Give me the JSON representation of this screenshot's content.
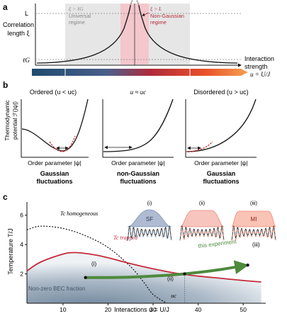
{
  "panel_a": {
    "label": "a",
    "ylabel_1": "Correlation",
    "ylabel_2": "length ξ",
    "tick_L": "L",
    "tick_lG": "ℓG",
    "universal_cond": "ξ > ℓG",
    "universal_1": "Universal",
    "universal_2": "regime",
    "nongauss_cond": "ξ > L",
    "nongauss_1": "Non-Gaussian",
    "nongauss_2": "regime",
    "xlabel_1": "Interaction",
    "xlabel_2": "strength",
    "xlabel_3": "u = U/J"
  },
  "panel_b": {
    "label": "b",
    "ylabel_1": "Thermodynamic",
    "ylabel_2": "potential ℱ(|ψ|)",
    "xlabel": "Order parameter |ψ|",
    "plots": [
      {
        "title": "Ordered (u < uc)",
        "caption_1": "Gaussian",
        "caption_2": "fluctuations"
      },
      {
        "title": "u ≈ uc",
        "caption_1": "non-Gaussian",
        "caption_2": "fluctuations"
      },
      {
        "title": "Disordered (u > uc)",
        "caption_1": "Gaussian",
        "caption_2": "fluctuations"
      }
    ]
  },
  "panel_c": {
    "label": "c",
    "ylabel": "Temperature T/J",
    "xlabel": "Interactions u = U/J",
    "x_ticks": [
      "10",
      "20",
      "30",
      "40",
      "50"
    ],
    "y_ticks": [
      "2",
      "4",
      "6"
    ],
    "uc_label": "uc",
    "tc_homogeneous": "Tc homogeneous",
    "tc_trapped": "Tc trapped",
    "bec_label": "Non-zero BEC fraction",
    "experiment_label": "this experiment",
    "marker_i": "(i)",
    "marker_ii": "(ii)",
    "marker_iii": "(iii)",
    "insets": [
      {
        "num": "(i)",
        "tag": "SF",
        "color": "#7c95b8"
      },
      {
        "num": "(ii)",
        "tag": "",
        "color": "#e8897a"
      },
      {
        "num": "(iii)",
        "tag": "MI",
        "color": "#ef8870"
      }
    ],
    "colors": {
      "tc_trapped": "#c42a3a",
      "arrow": "#4e8a3c",
      "bec": "#8a9db2"
    }
  },
  "chart_data": [
    {
      "type": "line",
      "x": [
        10,
        20,
        30,
        40,
        50
      ],
      "series": [
        {
          "name": "Tc homogeneous",
          "x": [
            2,
            5,
            10,
            15,
            20,
            25,
            28,
            30,
            33
          ],
          "y": [
            5.0,
            5.25,
            5.1,
            4.6,
            3.8,
            2.5,
            1.4,
            0.6,
            0.0
          ]
        },
        {
          "name": "Tc trapped",
          "x": [
            2,
            5,
            10,
            13,
            17,
            20,
            25,
            30,
            35,
            40,
            45,
            50,
            54
          ],
          "y": [
            2.2,
            2.8,
            3.35,
            3.45,
            3.3,
            3.1,
            2.7,
            2.35,
            2.05,
            1.85,
            1.7,
            1.55,
            1.45
          ]
        },
        {
          "name": "this experiment",
          "x": [
            15,
            20,
            25,
            30,
            35,
            40,
            45,
            50
          ],
          "y": [
            1.75,
            1.75,
            1.78,
            1.85,
            1.95,
            2.1,
            2.3,
            2.55
          ]
        }
      ],
      "xlim": [
        2,
        55
      ],
      "ylim": [
        0,
        7
      ],
      "markers": {
        "uc": 37
      }
    }
  ]
}
